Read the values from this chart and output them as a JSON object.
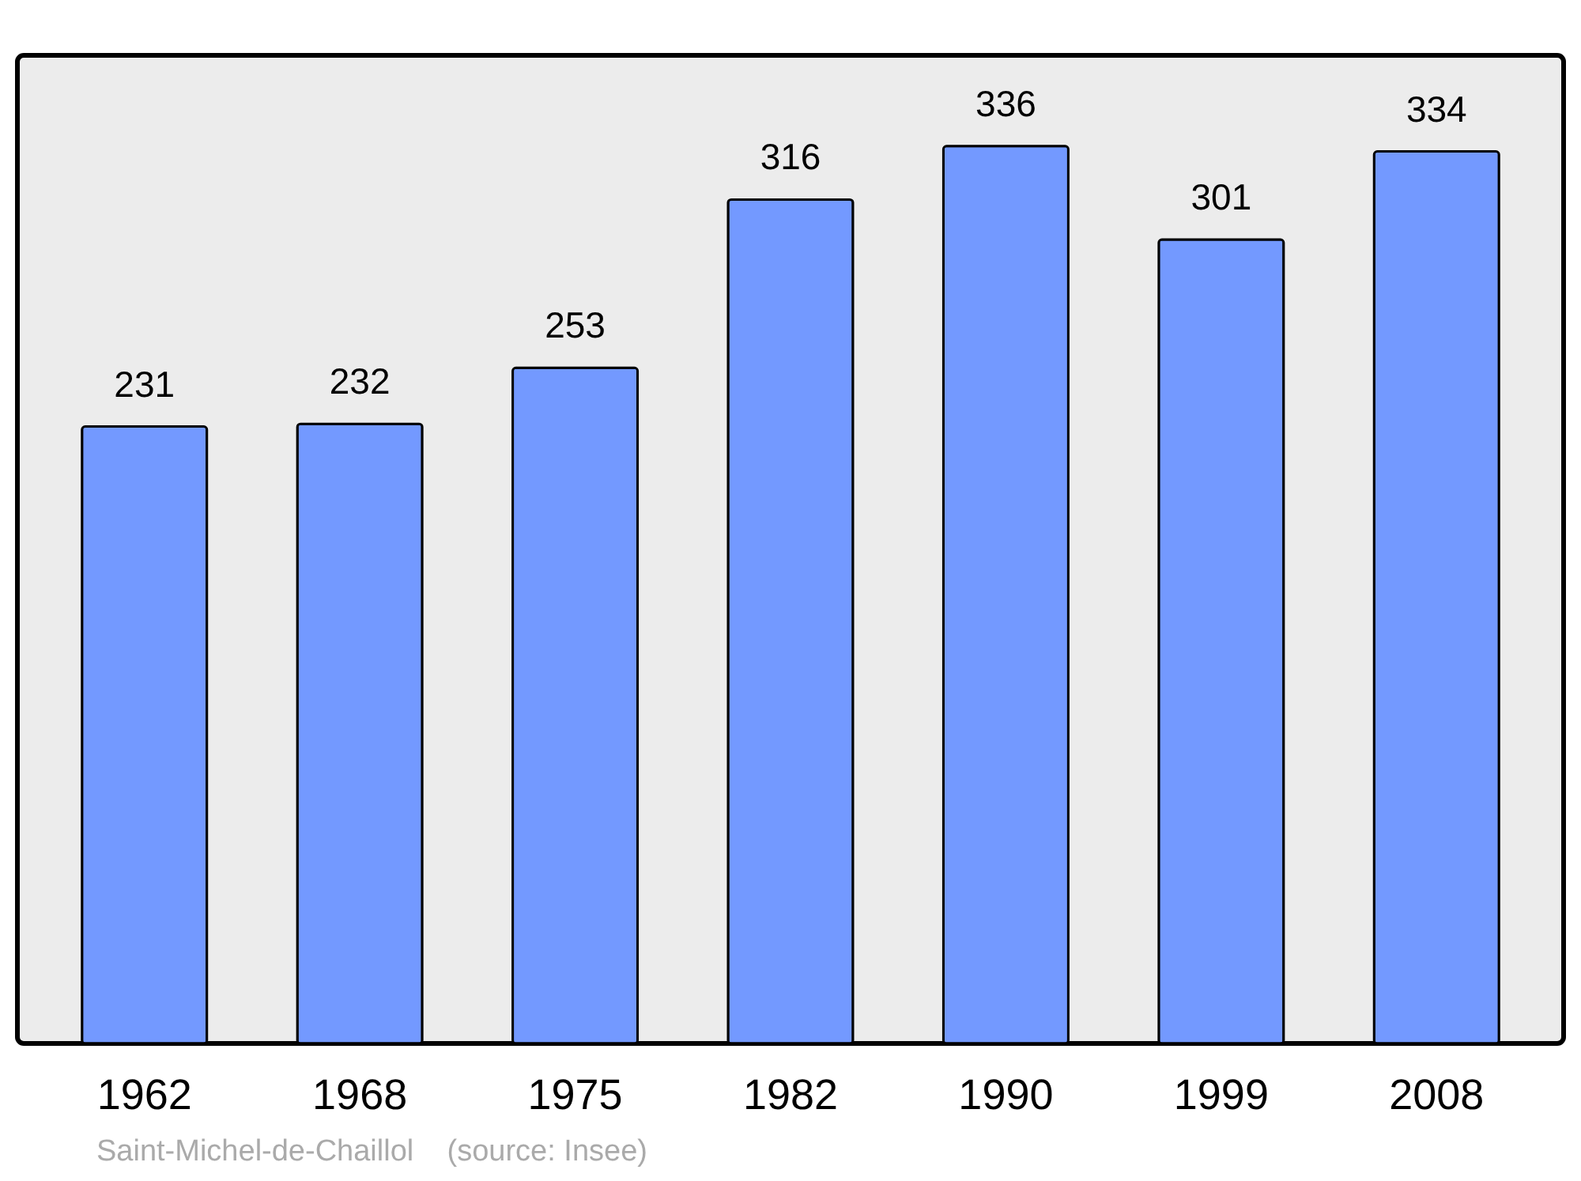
{
  "chart_data": {
    "type": "bar",
    "categories": [
      "1962",
      "1968",
      "1975",
      "1982",
      "1990",
      "1999",
      "2008"
    ],
    "values": [
      231,
      232,
      253,
      316,
      336,
      301,
      334
    ],
    "color": "#7399ff",
    "ylim": [
      0,
      370
    ],
    "data_labels": true,
    "tick_labels": "x",
    "annotations": [
      "Saint-Michel-de-Chaillol    (source: Insee)"
    ]
  }
}
